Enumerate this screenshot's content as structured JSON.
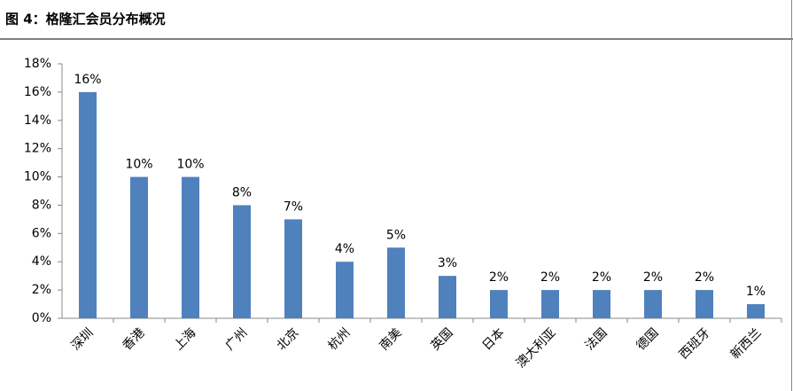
{
  "chart_data": {
    "type": "bar",
    "title": "图 4：格隆汇会员分布概况",
    "categories": [
      "深圳",
      "香港",
      "上海",
      "广州",
      "北京",
      "杭州",
      "南美",
      "英国",
      "日本",
      "澳大利亚",
      "法国",
      "德国",
      "西班牙",
      "新西兰"
    ],
    "values": [
      16,
      10,
      10,
      8,
      7,
      4,
      5,
      3,
      2,
      2,
      2,
      2,
      2,
      1
    ],
    "value_labels": [
      "16%",
      "10%",
      "10%",
      "8%",
      "7%",
      "4%",
      "5%",
      "3%",
      "2%",
      "2%",
      "2%",
      "2%",
      "2%",
      "1%"
    ],
    "color": "#4f81bd",
    "ylim": [
      0,
      18
    ],
    "yticks": [
      {
        "value": 0,
        "label": "0%"
      },
      {
        "value": 2,
        "label": "2%"
      },
      {
        "value": 4,
        "label": "4%"
      },
      {
        "value": 6,
        "label": "6%"
      },
      {
        "value": 8,
        "label": "8%"
      },
      {
        "value": 10,
        "label": "10%"
      },
      {
        "value": 12,
        "label": "12%"
      },
      {
        "value": 14,
        "label": "14%"
      },
      {
        "value": 16,
        "label": "16%"
      },
      {
        "value": 18,
        "label": "18%"
      }
    ],
    "grid": false
  }
}
